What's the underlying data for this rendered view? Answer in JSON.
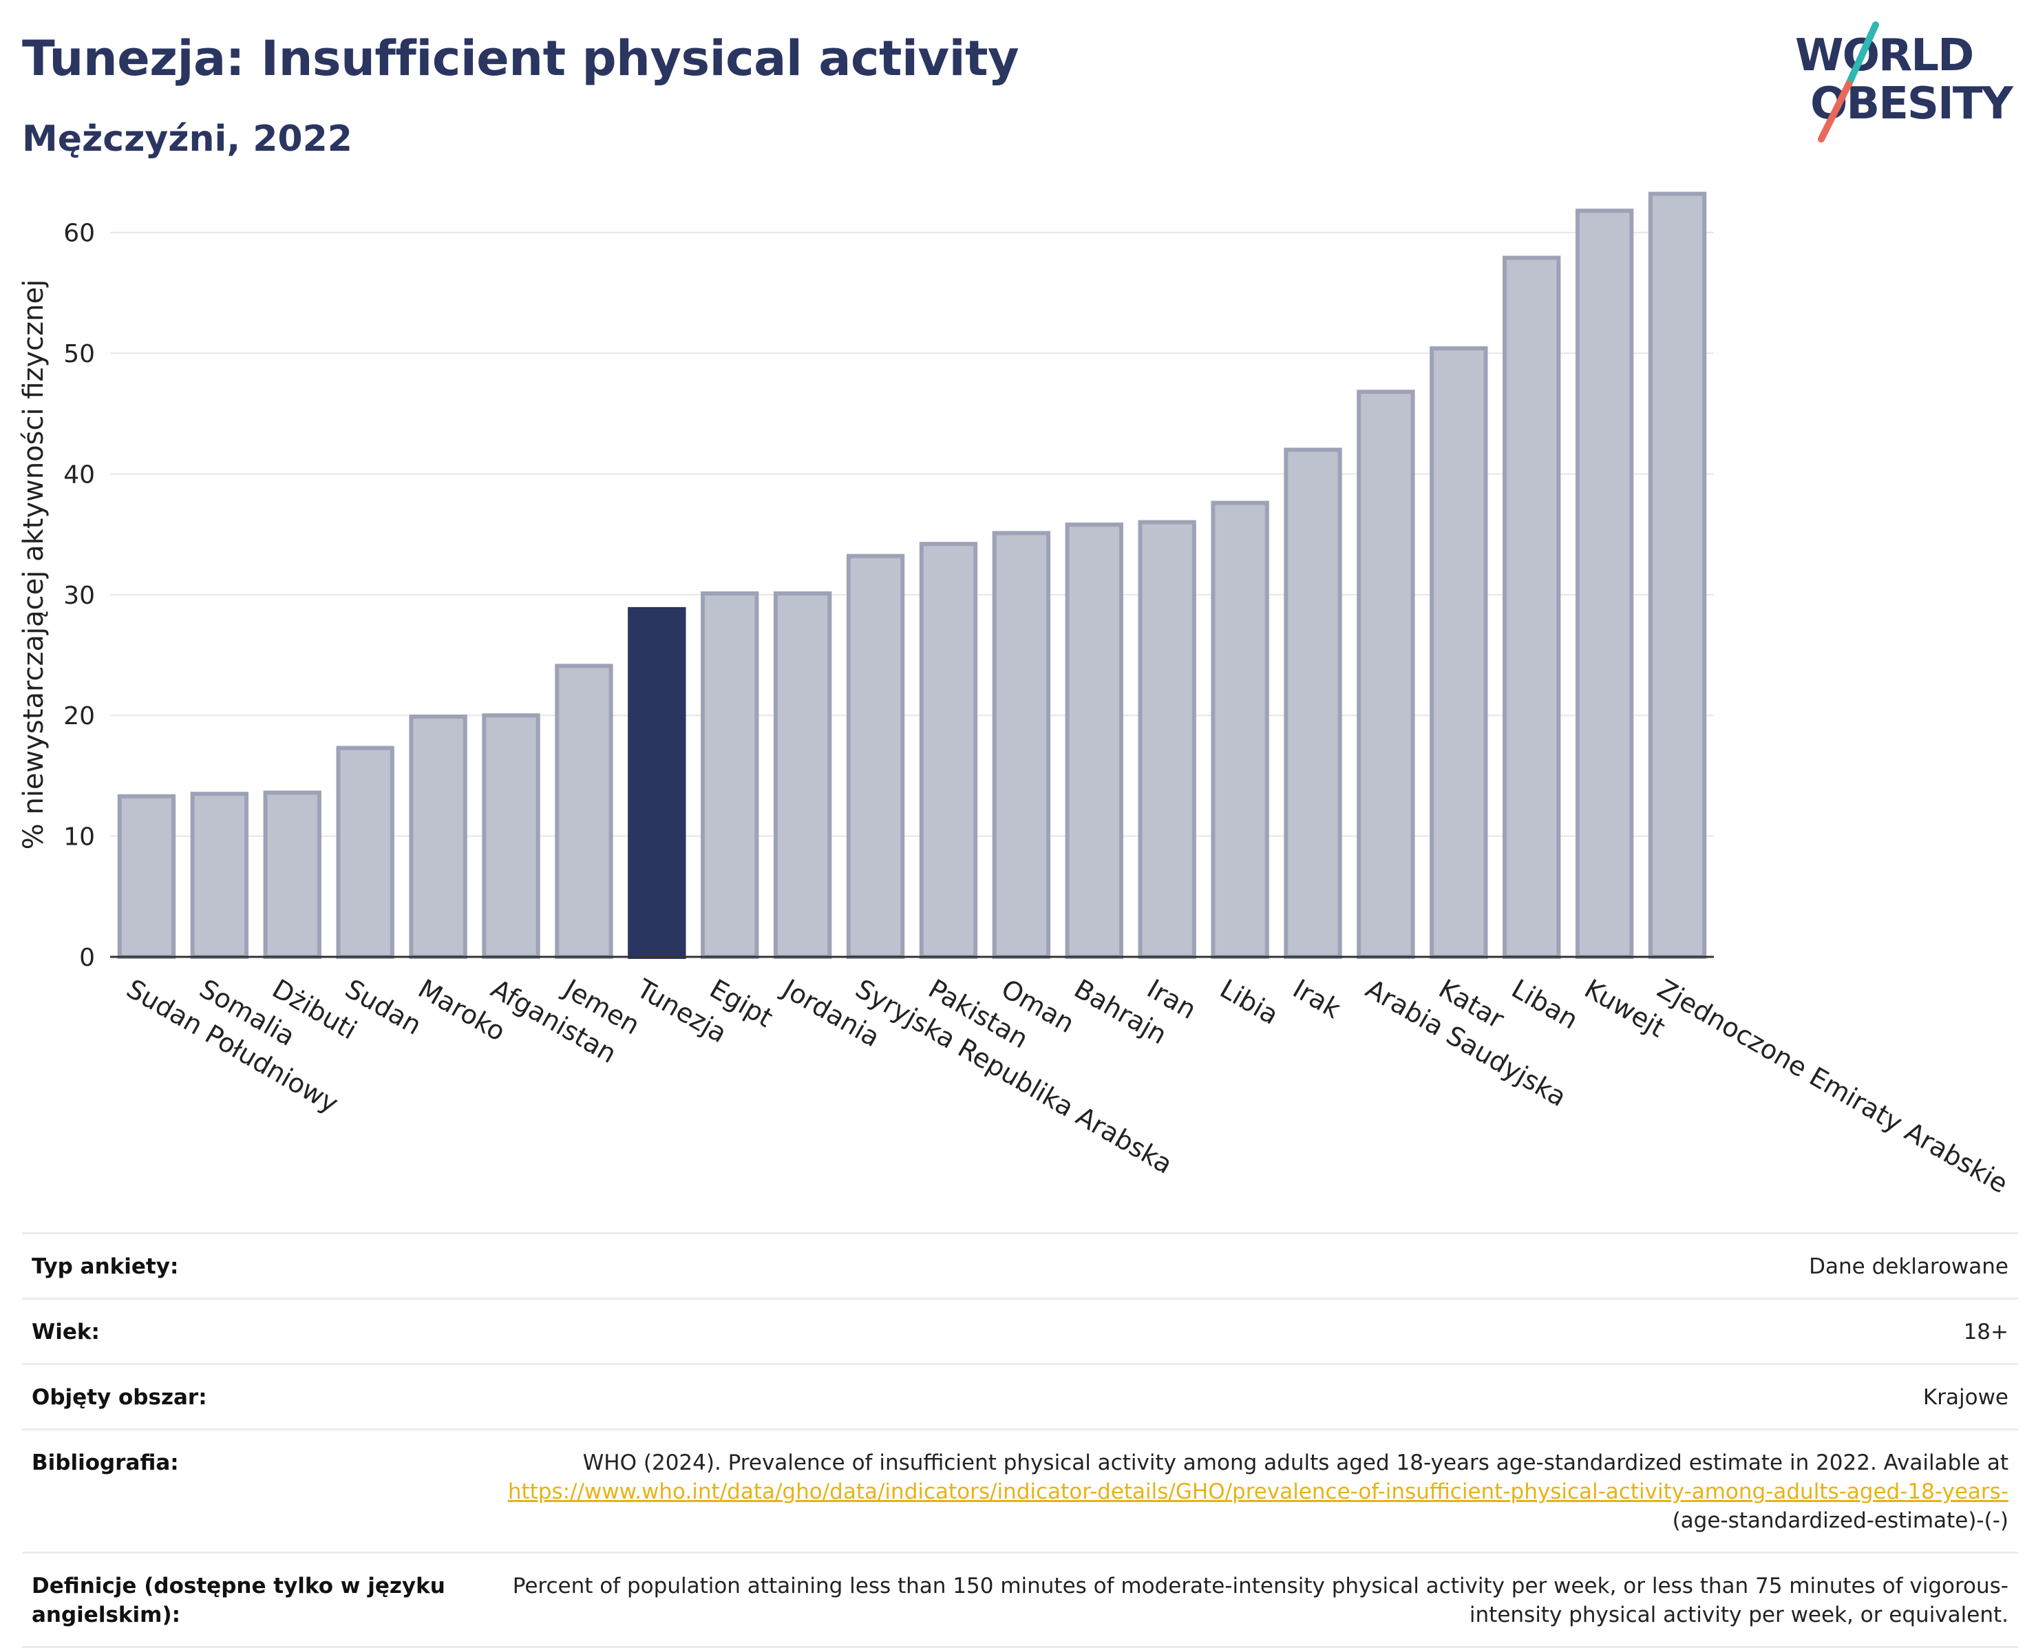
{
  "header": {
    "title": "Tunezja: Insufficient physical activity",
    "subtitle": "Mężczyźni, 2022"
  },
  "logo": {
    "line1": "WORLD",
    "line2": "OBESITY",
    "colors": {
      "text": "#2a3560",
      "slash_top": "#2fb7b2",
      "slash_bottom": "#e8685a"
    }
  },
  "chart_data": {
    "type": "bar",
    "ylabel": "% niewystarczającej aktywności fizycznej",
    "xlabel": "",
    "ylim": [
      0,
      65
    ],
    "yticks": [
      0,
      10,
      20,
      30,
      40,
      50,
      60
    ],
    "grid": true,
    "highlight": "Tunezja",
    "colors": {
      "bar": "#bec1ce",
      "bar_edge": "#9da2b6",
      "highlight": "#2a3560"
    },
    "categories": [
      "Sudan Południowy",
      "Somalia",
      "Dżibuti",
      "Sudan",
      "Maroko",
      "Afganistan",
      "Jemen",
      "Tunezja",
      "Egipt",
      "Jordania",
      "Syryjska Republika Arabska",
      "Pakistan",
      "Oman",
      "Bahrajn",
      "Iran",
      "Libia",
      "Irak",
      "Arabia Saudyjska",
      "Katar",
      "Liban",
      "Kuwejt",
      "Zjednoczone Emiraty Arabskie"
    ],
    "values": [
      13.3,
      13.5,
      13.6,
      17.3,
      19.9,
      20.0,
      24.1,
      28.8,
      30.1,
      30.1,
      33.2,
      34.2,
      35.1,
      35.8,
      36.0,
      37.6,
      42.0,
      46.8,
      50.4,
      57.9,
      61.8,
      63.2
    ]
  },
  "info": [
    {
      "label": "Typ ankiety:",
      "value": "Dane deklarowane"
    },
    {
      "label": "Wiek:",
      "value": "18+"
    },
    {
      "label": "Objęty obszar:",
      "value": "Krajowe"
    },
    {
      "label": "Bibliografia:",
      "value": "WHO (2024). Prevalence of insufficient physical activity among adults aged 18-years age-standardized estimate in 2022. Available at",
      "link": "https://www.who.int/data/gho/data/indicators/indicator-details/GHO/prevalence-of-insufficient-physical-activity-among-adults-aged-18-years-",
      "suffix": "(age-standardized-estimate)-(-)"
    },
    {
      "label": "Definicje (dostępne tylko w języku angielskim):",
      "value": "Percent of population attaining less than 150 minutes of moderate-intensity physical activity per week, or less than 75 minutes of vigorous-intensity physical activity per week, or equivalent."
    }
  ]
}
